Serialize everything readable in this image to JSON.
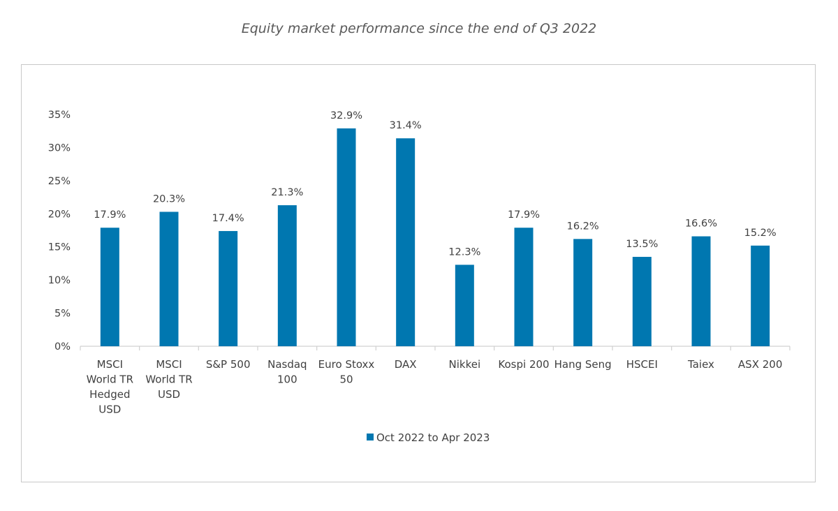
{
  "chart_data": {
    "type": "bar",
    "title": "Equity market performance since the end of Q3 2022",
    "categories": [
      [
        "MSCI",
        "World TR",
        "Hedged",
        "USD"
      ],
      [
        "MSCI",
        "World TR",
        "USD"
      ],
      [
        "S&P 500"
      ],
      [
        "Nasdaq",
        "100"
      ],
      [
        "Euro Stoxx",
        "50"
      ],
      [
        "DAX"
      ],
      [
        "Nikkei"
      ],
      [
        "Kospi 200"
      ],
      [
        "Hang Seng"
      ],
      [
        "HSCEI"
      ],
      [
        "Taiex"
      ],
      [
        "ASX 200"
      ]
    ],
    "series": [
      {
        "name": "Oct 2022 to Apr 2023",
        "values": [
          17.9,
          20.3,
          17.4,
          21.3,
          32.9,
          31.4,
          12.3,
          17.9,
          16.2,
          13.5,
          16.6,
          15.2
        ],
        "data_labels": [
          "17.9%",
          "20.3%",
          "17.4%",
          "21.3%",
          "32.9%",
          "31.4%",
          "12.3%",
          "17.9%",
          "16.2%",
          "13.5%",
          "16.6%",
          "15.2%"
        ],
        "color": "#0077b0"
      }
    ],
    "y_ticks": [
      0,
      5,
      10,
      15,
      20,
      25,
      30,
      35
    ],
    "y_tick_labels": [
      "0%",
      "5%",
      "10%",
      "15%",
      "20%",
      "25%",
      "30%",
      "35%"
    ],
    "ylim": [
      0,
      35
    ],
    "grid": false,
    "legend_position": "bottom-center"
  }
}
